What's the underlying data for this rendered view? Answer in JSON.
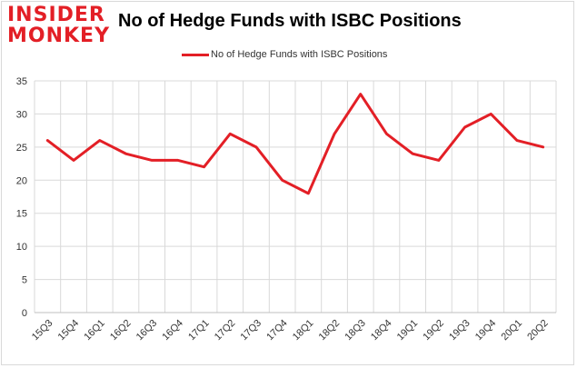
{
  "logo": {
    "line1": "INSIDER",
    "line2": "MONKEY"
  },
  "chart_data": {
    "type": "line",
    "title": "No of Hedge Funds with ISBC Positions",
    "categories": [
      "15Q3",
      "15Q4",
      "16Q1",
      "16Q2",
      "16Q3",
      "16Q4",
      "17Q1",
      "17Q2",
      "17Q3",
      "17Q4",
      "18Q1",
      "18Q2",
      "18Q3",
      "18Q4",
      "19Q1",
      "19Q2",
      "19Q3",
      "19Q4",
      "20Q1",
      "20Q2"
    ],
    "series": [
      {
        "name": "No of Hedge Funds with ISBC Positions",
        "color": "#e31f26",
        "values": [
          26,
          23,
          26,
          24,
          23,
          23,
          22,
          27,
          25,
          20,
          18,
          27,
          33,
          27,
          24,
          23,
          28,
          30,
          26,
          25
        ]
      }
    ],
    "yticks": [
      0,
      5,
      10,
      15,
      20,
      25,
      30,
      35
    ],
    "ylim": [
      0,
      35
    ],
    "grid": true,
    "legend_position": "top-center"
  }
}
